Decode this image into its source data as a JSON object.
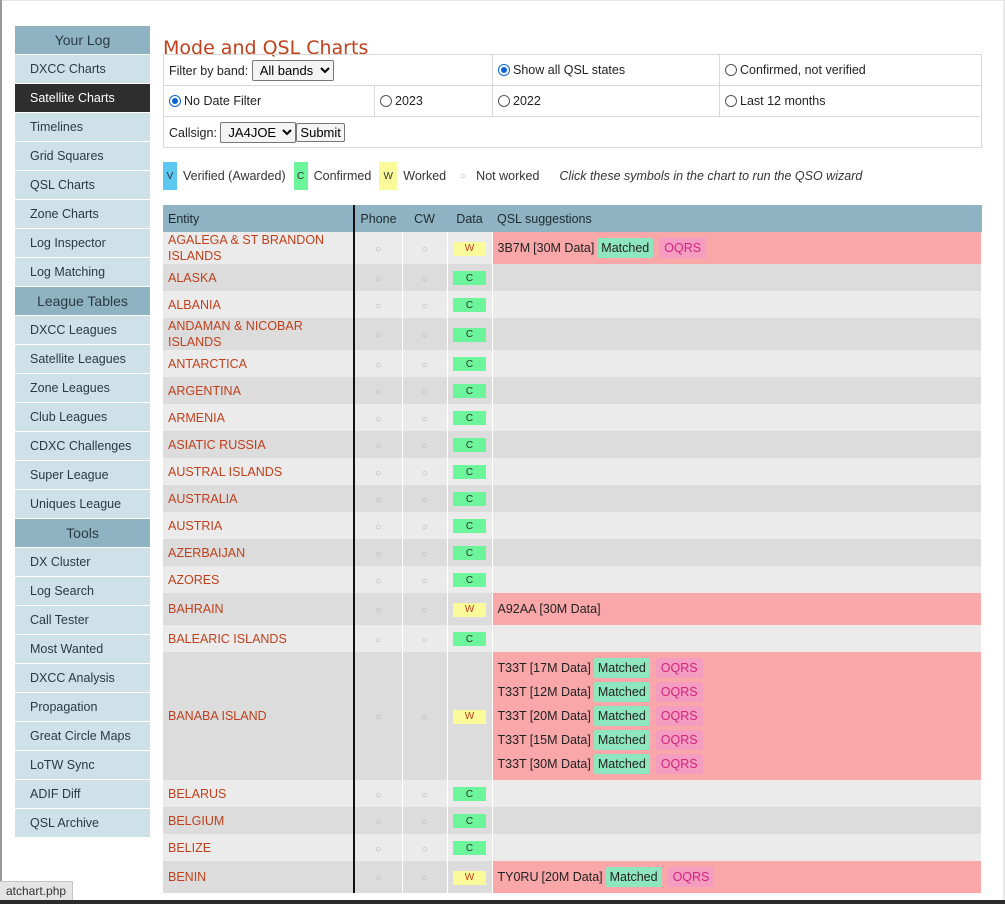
{
  "sidebar": {
    "sections": [
      {
        "title": "Your Log",
        "items": [
          "DXCC Charts",
          "Satellite Charts",
          "Timelines",
          "Grid Squares",
          "QSL Charts",
          "Zone Charts",
          "Log Inspector",
          "Log Matching"
        ]
      },
      {
        "title": "League Tables",
        "items": [
          "DXCC Leagues",
          "Satellite Leagues",
          "Zone Leagues",
          "Club Leagues",
          "CDXC Challenges",
          "Super League",
          "Uniques League"
        ]
      },
      {
        "title": "Tools",
        "items": [
          "DX Cluster",
          "Log Search",
          "Call Tester",
          "Most Wanted",
          "DXCC Analysis",
          "Propagation",
          "Great Circle Maps",
          "LoTW Sync",
          "ADIF Diff",
          "QSL Archive"
        ]
      }
    ],
    "active_item": "Satellite Charts"
  },
  "page": {
    "title": "Mode and QSL Charts"
  },
  "filters": {
    "band_label": "Filter by band:",
    "band_selected": "All bands",
    "qsl_show_all": "Show all QSL states",
    "qsl_confirmed_not_verified": "Confirmed, not verified",
    "date_none": "No Date Filter",
    "date_2023": "2023",
    "date_2022": "2022",
    "date_last12": "Last 12 months",
    "callsign_label": "Callsign:",
    "callsign_selected": "JA4JOE",
    "submit_label": "Submit"
  },
  "legend": {
    "verified_symbol": "V",
    "verified_label": "Verified (Awarded)",
    "confirmed_symbol": "C",
    "confirmed_label": "Confirmed",
    "worked_symbol": "W",
    "worked_label": "Worked",
    "not_worked_symbol": "○",
    "not_worked_label": "Not worked",
    "hint": "Click these symbols in the chart to run the QSO wizard",
    "colors": {
      "verified": "#5cc8ef",
      "confirmed": "#6cf59a",
      "worked": "#fafa9a",
      "suggestion_bg": "#f9a7a9"
    }
  },
  "chart": {
    "headers": {
      "entity": "Entity",
      "phone": "Phone",
      "cw": "CW",
      "data": "Data",
      "suggestions": "QSL suggestions"
    },
    "matched_label": "Matched",
    "oqrs_label": "OQRS",
    "rows": [
      {
        "entity": "AGALEGA & ST BRANDON ISLANDS",
        "phone": "○",
        "cw": "○",
        "data": "W",
        "suggestions": [
          {
            "call": "3B7M",
            "detail": "[30M Data]",
            "matched": true,
            "oqrs": true
          }
        ]
      },
      {
        "entity": "ALASKA",
        "phone": "○",
        "cw": "○",
        "data": "C",
        "suggestions": []
      },
      {
        "entity": "ALBANIA",
        "phone": "○",
        "cw": "○",
        "data": "C",
        "suggestions": []
      },
      {
        "entity": "ANDAMAN & NICOBAR ISLANDS",
        "phone": "○",
        "cw": "○",
        "data": "C",
        "suggestions": []
      },
      {
        "entity": "ANTARCTICA",
        "phone": "○",
        "cw": "○",
        "data": "C",
        "suggestions": []
      },
      {
        "entity": "ARGENTINA",
        "phone": "○",
        "cw": "○",
        "data": "C",
        "suggestions": []
      },
      {
        "entity": "ARMENIA",
        "phone": "○",
        "cw": "○",
        "data": "C",
        "suggestions": []
      },
      {
        "entity": "ASIATIC RUSSIA",
        "phone": "○",
        "cw": "○",
        "data": "C",
        "suggestions": []
      },
      {
        "entity": "AUSTRAL ISLANDS",
        "phone": "○",
        "cw": "○",
        "data": "C",
        "suggestions": []
      },
      {
        "entity": "AUSTRALIA",
        "phone": "○",
        "cw": "○",
        "data": "C",
        "suggestions": []
      },
      {
        "entity": "AUSTRIA",
        "phone": "○",
        "cw": "○",
        "data": "C",
        "suggestions": []
      },
      {
        "entity": "AZERBAIJAN",
        "phone": "○",
        "cw": "○",
        "data": "C",
        "suggestions": []
      },
      {
        "entity": "AZORES",
        "phone": "○",
        "cw": "○",
        "data": "C",
        "suggestions": []
      },
      {
        "entity": "BAHRAIN",
        "phone": "○",
        "cw": "○",
        "data": "W",
        "suggestions": [
          {
            "call": "A92AA",
            "detail": "[30M Data]",
            "matched": false,
            "oqrs": false
          }
        ]
      },
      {
        "entity": "BALEARIC ISLANDS",
        "phone": "○",
        "cw": "○",
        "data": "C",
        "suggestions": []
      },
      {
        "entity": "BANABA ISLAND",
        "phone": "○",
        "cw": "○",
        "data": "W",
        "suggestions": [
          {
            "call": "T33T",
            "detail": "[17M Data]",
            "matched": true,
            "oqrs": true
          },
          {
            "call": "T33T",
            "detail": "[12M Data]",
            "matched": true,
            "oqrs": true
          },
          {
            "call": "T33T",
            "detail": "[20M Data]",
            "matched": true,
            "oqrs": true
          },
          {
            "call": "T33T",
            "detail": "[15M Data]",
            "matched": true,
            "oqrs": true
          },
          {
            "call": "T33T",
            "detail": "[30M Data]",
            "matched": true,
            "oqrs": true
          }
        ]
      },
      {
        "entity": "BELARUS",
        "phone": "○",
        "cw": "○",
        "data": "C",
        "suggestions": []
      },
      {
        "entity": "BELGIUM",
        "phone": "○",
        "cw": "○",
        "data": "C",
        "suggestions": []
      },
      {
        "entity": "BELIZE",
        "phone": "○",
        "cw": "○",
        "data": "C",
        "suggestions": []
      },
      {
        "entity": "BENIN",
        "phone": "○",
        "cw": "○",
        "data": "W",
        "suggestions": [
          {
            "call": "TY0RU",
            "detail": "[20M Data]",
            "matched": true,
            "oqrs": true
          }
        ]
      }
    ]
  },
  "status_bar": {
    "url_fragment": "atchart.php"
  }
}
